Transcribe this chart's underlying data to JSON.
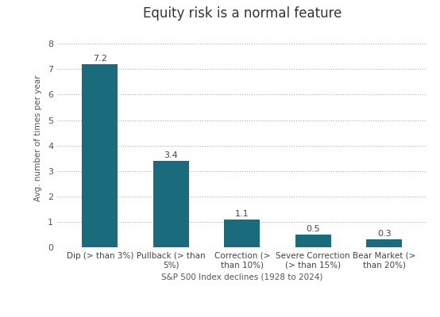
{
  "title": "Equity risk is a normal feature",
  "categories": [
    "Dip (> than 3%)",
    "Pullback (> than\n5%)",
    "Correction (>\nthan 10%)",
    "Severe Correction\n(> than 15%)",
    "Bear Market (>\nthan 20%)"
  ],
  "values": [
    7.2,
    3.4,
    1.1,
    0.5,
    0.3
  ],
  "bar_color": "#1a6b7c",
  "ylabel": "Avg. number of times per year",
  "xlabel": "S&P 500 Index declines (1928 to 2024)",
  "ylim": [
    0,
    8.6
  ],
  "yticks": [
    0,
    1,
    2,
    3,
    4,
    5,
    6,
    7,
    8
  ],
  "background_color": "#ffffff",
  "title_fontsize": 12,
  "label_fontsize": 7.5,
  "xtick_fontsize": 7.5,
  "ytick_fontsize": 8,
  "value_label_fontsize": 8
}
